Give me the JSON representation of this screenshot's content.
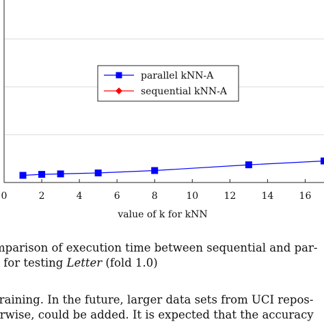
{
  "chart_data": {
    "type": "line",
    "xlabel": "value of k for kNN",
    "ylabel": "",
    "xlim": [
      0,
      17
    ],
    "x_ticks": [
      "0",
      "2",
      "4",
      "6",
      "8",
      "10",
      "12",
      "14",
      "16"
    ],
    "ylim": [
      0,
      5
    ],
    "grid": "horizontal",
    "legend_position": "center",
    "series": [
      {
        "name": "parallel kNN-A",
        "color": "#0000ff",
        "marker": "square",
        "x": [
          1,
          2,
          3,
          5,
          8,
          13,
          17
        ],
        "y": [
          0.15,
          0.17,
          0.18,
          0.2,
          0.25,
          0.37,
          0.45
        ]
      },
      {
        "name": "sequential kNN-A",
        "color": "#ff0000",
        "marker": "diamond",
        "x": [],
        "y": []
      }
    ]
  },
  "caption": {
    "line1": "mparison of execution time between sequential and par-",
    "line2_pre": "A for testing ",
    "line2_italic": "Letter",
    "line2_post": " (fold 1.0)"
  },
  "body_text": {
    "line1": "training. In the future, larger data sets from UCI repos-",
    "line2": "erwise, could be added. It is expected that the accuracy"
  }
}
